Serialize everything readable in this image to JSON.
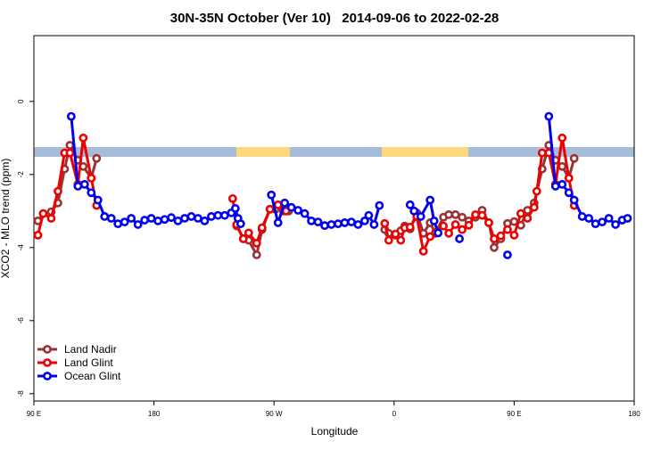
{
  "chart_data": {
    "type": "line",
    "title": "30N-35N October (Ver 10)   2014-09-06 to 2022-02-28",
    "xlabel": "Longitude",
    "ylabel": "XCO2 - MLO trend (ppm)",
    "xlim": [
      90,
      540
    ],
    "ylim": [
      -8.2,
      1.8
    ],
    "xticks": [
      {
        "value": 90,
        "label": "90 E"
      },
      {
        "value": 180,
        "label": "180"
      },
      {
        "value": 270,
        "label": "90 W"
      },
      {
        "value": 360,
        "label": "0"
      },
      {
        "value": 450,
        "label": "90 E"
      },
      {
        "value": 540,
        "label": "180"
      }
    ],
    "yticks": [
      0,
      -2,
      -4,
      -6,
      -8
    ],
    "legend": "bottom-left",
    "series": [
      {
        "name": "Land Nadir",
        "color": "#993333",
        "x": [
          93,
          97,
          103,
          108,
          113,
          117,
          123,
          127,
          133,
          137,
          null,
          242,
          247,
          251,
          257,
          261,
          267,
          271,
          277,
          281,
          null,
          353,
          356,
          361,
          365,
          368,
          372,
          377,
          382,
          387,
          391,
          397,
          401,
          406,
          411,
          416,
          421,
          426,
          431,
          435,
          440,
          445,
          450,
          455,
          460,
          465,
          471,
          476,
          481,
          486,
          491,
          495
        ],
        "values": [
          -3.27,
          -3.07,
          -3.02,
          -2.78,
          -1.85,
          -1.2,
          -1.61,
          -1.78,
          -2.1,
          -1.56,
          null,
          -3.41,
          -3.76,
          -3.8,
          -4.2,
          -3.51,
          -2.95,
          -2.95,
          -3.0,
          -3.0,
          null,
          -3.51,
          -3.61,
          -3.66,
          -3.54,
          -3.41,
          -3.49,
          -3.05,
          -3.61,
          -3.32,
          -3.61,
          -3.17,
          -3.1,
          -3.1,
          -3.17,
          -3.27,
          -3.17,
          -2.98,
          -3.32,
          -4.0,
          -3.76,
          -3.34,
          -3.29,
          -3.39,
          -2.98,
          -2.78,
          -1.85,
          -1.2,
          -1.61,
          -1.78,
          -2.1,
          -1.56
        ]
      },
      {
        "name": "Land Glint",
        "color": "#ee0000",
        "x": [
          93,
          97,
          103,
          108,
          113,
          117,
          123,
          127,
          133,
          137,
          null,
          239,
          242,
          247,
          251,
          257,
          261,
          267,
          273,
          279,
          null,
          353,
          356,
          361,
          365,
          368,
          372,
          377,
          382,
          387,
          391,
          397,
          401,
          406,
          411,
          416,
          421,
          426,
          431,
          435,
          440,
          445,
          450,
          455,
          460,
          465,
          467,
          471,
          476,
          481,
          486,
          491,
          495
        ],
        "values": [
          -3.66,
          -3.07,
          -3.2,
          -2.46,
          -1.41,
          -1.41,
          -2.27,
          -1.0,
          -2.1,
          -2.85,
          null,
          -2.66,
          -3.37,
          -3.76,
          -3.6,
          -3.88,
          -3.46,
          -2.95,
          -2.83,
          -3.0,
          null,
          -3.34,
          -3.8,
          -3.63,
          -3.8,
          -3.46,
          -3.44,
          -3.15,
          -4.1,
          -3.7,
          -3.59,
          -3.41,
          -3.61,
          -3.37,
          -3.51,
          -3.39,
          -3.1,
          -3.12,
          -3.32,
          -3.76,
          -3.68,
          -3.51,
          -3.66,
          -3.07,
          -3.2,
          -2.9,
          -2.46,
          -1.41,
          -1.41,
          -2.27,
          -1.0,
          -2.1,
          -2.85
        ]
      },
      {
        "name": "Ocean Glint",
        "color": "#0000ee",
        "x": [
          118,
          123,
          128,
          133,
          138,
          143,
          148,
          153,
          158,
          163,
          168,
          173,
          178,
          183,
          188,
          193,
          198,
          203,
          208,
          213,
          218,
          223,
          228,
          233,
          238,
          241,
          243,
          245,
          null,
          268,
          273,
          278,
          283,
          288,
          293,
          298,
          303,
          308,
          313,
          318,
          323,
          328,
          333,
          338,
          341,
          345,
          349,
          null,
          372,
          375,
          380,
          387,
          390,
          393,
          null,
          409,
          null,
          445,
          null,
          476,
          481,
          486,
          491,
          495,
          501,
          506,
          511,
          516,
          521,
          526,
          531,
          535
        ],
        "values": [
          -0.41,
          -2.32,
          -2.27,
          -2.5,
          -2.7,
          -3.15,
          -3.2,
          -3.35,
          -3.3,
          -3.2,
          -3.37,
          -3.25,
          -3.2,
          -3.27,
          -3.23,
          -3.18,
          -3.27,
          -3.2,
          -3.15,
          -3.2,
          -3.27,
          -3.15,
          -3.12,
          -3.12,
          -3.05,
          -2.93,
          -3.2,
          -3.35,
          null,
          -2.56,
          -3.32,
          -2.78,
          -2.9,
          -2.98,
          -3.07,
          -3.27,
          -3.3,
          -3.4,
          -3.37,
          -3.35,
          -3.32,
          -3.3,
          -3.37,
          -3.27,
          -3.12,
          -3.37,
          -2.85,
          null,
          -2.83,
          -3.0,
          -3.15,
          -2.7,
          -3.27,
          -3.6,
          null,
          -3.76,
          null,
          -4.2,
          null,
          -0.41,
          -2.32,
          -2.27,
          -2.5,
          -2.7,
          -3.15,
          -3.2,
          -3.35,
          -3.3,
          -3.2,
          -3.37,
          -3.25,
          -3.2
        ]
      }
    ]
  }
}
